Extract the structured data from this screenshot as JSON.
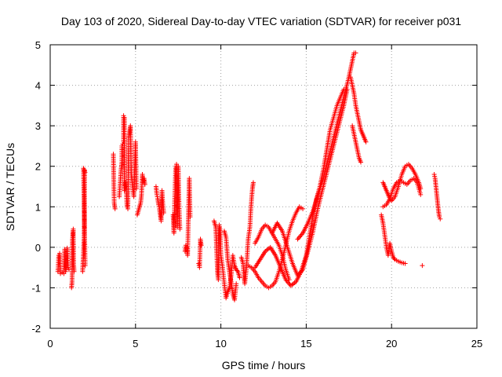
{
  "chart_data": {
    "type": "scatter",
    "title": "Day 103 of 2020, Sidereal Day-to-day VTEC variation (SDTVAR) for receiver p031",
    "xlabel": "GPS time / hours",
    "ylabel": "SDTVAR / TECUs",
    "xlim": [
      0,
      25
    ],
    "ylim": [
      -2,
      5
    ],
    "xticks": [
      "0",
      "5",
      "10",
      "15",
      "20",
      "25"
    ],
    "yticks": [
      "-2",
      "-1",
      "0",
      "1",
      "2",
      "3",
      "4",
      "5"
    ],
    "grid": true,
    "marker": "+",
    "color": "#ff0000",
    "series": [
      {
        "name": "SDTVAR",
        "segments": [
          [
            [
              0.45,
              -0.6
            ],
            [
              0.5,
              -0.2
            ],
            [
              0.55,
              -0.15
            ],
            [
              0.6,
              -0.65
            ],
            [
              0.7,
              -0.62
            ],
            [
              0.8,
              -0.65
            ],
            [
              0.85,
              -0.05
            ],
            [
              0.9,
              -0.6
            ],
            [
              0.95,
              -0.5
            ],
            [
              1.0,
              -0.02
            ],
            [
              1.05,
              -0.5
            ],
            [
              1.1,
              -0.55
            ]
          ],
          [
            [
              1.25,
              -1.0
            ],
            [
              1.28,
              -0.85
            ],
            [
              1.3,
              0.2
            ],
            [
              1.32,
              0.3
            ],
            [
              1.35,
              0.45
            ],
            [
              1.38,
              -0.45
            ],
            [
              1.4,
              -0.6
            ]
          ],
          [
            [
              1.9,
              -0.6
            ],
            [
              1.92,
              -0.4
            ],
            [
              1.94,
              -0.25
            ],
            [
              1.96,
              0.0
            ],
            [
              1.98,
              0.2
            ],
            [
              2.0,
              0.6
            ],
            [
              2.02,
              1.9
            ],
            [
              2.04,
              1.85
            ],
            [
              1.95,
              1.95
            ],
            [
              2.05,
              -0.45
            ]
          ],
          [
            [
              3.7,
              2.3
            ],
            [
              3.75,
              1.1
            ],
            [
              3.8,
              0.95
            ]
          ],
          [
            [
              4.05,
              1.25
            ],
            [
              4.1,
              1.6
            ],
            [
              4.15,
              1.9
            ],
            [
              4.2,
              2.1
            ],
            [
              4.2,
              2.5
            ],
            [
              4.25,
              2.55
            ],
            [
              4.3,
              2.6
            ],
            [
              4.3,
              3.25
            ],
            [
              4.35,
              3.2
            ],
            [
              4.35,
              1.4
            ],
            [
              4.4,
              1.6
            ],
            [
              4.45,
              1.5
            ],
            [
              4.5,
              1.0
            ],
            [
              4.55,
              0.95
            ],
            [
              4.6,
              2.7
            ],
            [
              4.65,
              2.85
            ],
            [
              4.7,
              3.0
            ],
            [
              4.75,
              1.8
            ],
            [
              4.8,
              1.6
            ],
            [
              4.9,
              1.25
            ],
            [
              5.0,
              2.6
            ],
            [
              5.05,
              1.45
            ]
          ],
          [
            [
              5.1,
              0.8
            ],
            [
              5.2,
              0.95
            ],
            [
              5.3,
              1.1
            ],
            [
              5.35,
              1.3
            ],
            [
              5.4,
              1.8
            ],
            [
              5.45,
              1.6
            ],
            [
              5.5,
              1.7
            ],
            [
              5.55,
              1.55
            ]
          ],
          [
            [
              6.2,
              1.5
            ],
            [
              6.25,
              1.3
            ],
            [
              6.3,
              1.2
            ],
            [
              6.35,
              1.05
            ],
            [
              6.4,
              0.95
            ],
            [
              6.45,
              0.8
            ],
            [
              6.5,
              0.65
            ],
            [
              6.55,
              1.4
            ],
            [
              6.6,
              1.05
            ],
            [
              6.65,
              0.85
            ]
          ],
          [
            [
              7.2,
              0.8
            ],
            [
              7.25,
              0.35
            ],
            [
              7.3,
              1.25
            ],
            [
              7.35,
              1.95
            ],
            [
              7.4,
              2.05
            ],
            [
              7.45,
              0.5
            ],
            [
              7.5,
              2.0
            ],
            [
              7.55,
              1.0
            ],
            [
              7.6,
              0.45
            ]
          ],
          [
            [
              7.9,
              -0.1
            ],
            [
              7.95,
              0.05
            ],
            [
              8.0,
              0.0
            ],
            [
              8.05,
              -0.2
            ],
            [
              8.1,
              0.8
            ],
            [
              8.15,
              1.7
            ],
            [
              8.2,
              0.75
            ]
          ],
          [
            [
              8.7,
              -0.4
            ],
            [
              8.75,
              -0.5
            ],
            [
              8.8,
              0.2
            ],
            [
              8.85,
              0.05
            ]
          ],
          [
            [
              9.6,
              0.65
            ],
            [
              9.7,
              0.5
            ],
            [
              9.8,
              -0.6
            ],
            [
              9.85,
              -0.8
            ],
            [
              9.9,
              0.55
            ],
            [
              9.95,
              0.45
            ],
            [
              10.0,
              -0.2
            ],
            [
              10.1,
              -0.5
            ],
            [
              10.2,
              -0.9
            ],
            [
              10.3,
              -1.25
            ],
            [
              10.4,
              -1.1
            ],
            [
              10.5,
              -1.0
            ],
            [
              10.6,
              -0.7
            ],
            [
              10.7,
              -0.2
            ],
            [
              10.8,
              -0.45
            ],
            [
              10.9,
              -0.55
            ],
            [
              11.0,
              -0.6
            ],
            [
              11.1,
              -0.75
            ]
          ],
          [
            [
              10.2,
              0.4
            ],
            [
              10.3,
              0.25
            ],
            [
              10.4,
              -0.3
            ],
            [
              10.5,
              -0.6
            ],
            [
              10.6,
              -0.85
            ],
            [
              10.7,
              -1.15
            ],
            [
              10.8,
              -1.3
            ],
            [
              10.9,
              -0.9
            ]
          ],
          [
            [
              11.2,
              -0.25
            ],
            [
              11.3,
              -0.4
            ],
            [
              11.35,
              -0.7
            ],
            [
              11.4,
              -0.9
            ],
            [
              11.5,
              -0.5
            ],
            [
              11.6,
              0.2
            ],
            [
              11.7,
              0.5
            ],
            [
              11.75,
              0.9
            ],
            [
              11.8,
              1.2
            ],
            [
              11.85,
              1.45
            ],
            [
              11.9,
              1.6
            ]
          ],
          [
            [
              12.0,
              0.1
            ],
            [
              12.2,
              0.25
            ],
            [
              12.4,
              0.45
            ],
            [
              12.6,
              0.55
            ],
            [
              12.8,
              0.5
            ],
            [
              13.0,
              0.35
            ],
            [
              13.2,
              0.2
            ],
            [
              13.4,
              0.05
            ],
            [
              13.6,
              -0.2
            ],
            [
              13.8,
              -0.55
            ],
            [
              14.0,
              -0.8
            ]
          ],
          [
            [
              11.6,
              -0.45
            ],
            [
              11.8,
              -0.5
            ],
            [
              12.0,
              -0.6
            ],
            [
              12.2,
              -0.75
            ],
            [
              12.4,
              -0.85
            ],
            [
              12.6,
              -0.95
            ],
            [
              12.8,
              -1.0
            ],
            [
              13.0,
              -0.95
            ],
            [
              13.2,
              -0.85
            ],
            [
              13.4,
              -0.6
            ],
            [
              13.6,
              -0.3
            ],
            [
              13.8,
              0.05
            ],
            [
              14.0,
              0.4
            ],
            [
              14.2,
              0.65
            ],
            [
              14.4,
              0.85
            ],
            [
              14.6,
              1.0
            ],
            [
              14.8,
              0.95
            ]
          ],
          [
            [
              12.0,
              -0.5
            ],
            [
              12.3,
              -0.3
            ],
            [
              12.6,
              -0.1
            ],
            [
              12.9,
              0.0
            ],
            [
              13.2,
              -0.2
            ],
            [
              13.5,
              -0.5
            ],
            [
              13.8,
              -0.8
            ],
            [
              14.1,
              -0.95
            ],
            [
              14.4,
              -0.85
            ],
            [
              14.7,
              -0.6
            ],
            [
              15.0,
              -0.2
            ],
            [
              15.2,
              0.3
            ],
            [
              15.4,
              0.8
            ],
            [
              15.6,
              1.2
            ],
            [
              15.8,
              1.5
            ],
            [
              16.0,
              1.9
            ],
            [
              16.2,
              2.4
            ],
            [
              16.4,
              2.9
            ],
            [
              16.6,
              3.2
            ],
            [
              16.8,
              3.5
            ],
            [
              17.0,
              3.7
            ],
            [
              17.2,
              3.9
            ]
          ],
          [
            [
              13.0,
              0.35
            ],
            [
              13.3,
              0.6
            ],
            [
              13.6,
              0.4
            ],
            [
              13.9,
              0.0
            ],
            [
              14.2,
              -0.4
            ],
            [
              14.5,
              -0.7
            ],
            [
              14.8,
              -0.55
            ],
            [
              15.1,
              -0.1
            ],
            [
              15.4,
              0.4
            ],
            [
              15.7,
              1.0
            ],
            [
              16.0,
              1.5
            ],
            [
              16.3,
              2.0
            ],
            [
              16.6,
              2.5
            ],
            [
              16.9,
              3.0
            ],
            [
              17.2,
              3.5
            ],
            [
              17.4,
              3.9
            ]
          ],
          [
            [
              14.5,
              0.2
            ],
            [
              14.8,
              0.35
            ],
            [
              15.1,
              0.6
            ],
            [
              15.4,
              0.9
            ],
            [
              15.7,
              1.3
            ],
            [
              16.0,
              1.7
            ],
            [
              16.3,
              2.2
            ],
            [
              16.6,
              2.7
            ],
            [
              16.9,
              3.2
            ],
            [
              17.2,
              3.7
            ],
            [
              17.5,
              4.2
            ],
            [
              17.7,
              4.6
            ],
            [
              17.8,
              4.8
            ],
            [
              17.9,
              4.8
            ]
          ],
          [
            [
              17.6,
              4.2
            ],
            [
              17.8,
              3.8
            ],
            [
              17.9,
              3.5
            ],
            [
              18.0,
              3.3
            ],
            [
              18.1,
              3.1
            ],
            [
              18.2,
              2.9
            ],
            [
              18.3,
              2.8
            ],
            [
              18.4,
              2.7
            ],
            [
              18.5,
              2.6
            ]
          ],
          [
            [
              17.7,
              3.0
            ],
            [
              17.8,
              2.8
            ],
            [
              17.9,
              2.6
            ],
            [
              18.0,
              2.4
            ],
            [
              18.1,
              2.2
            ],
            [
              18.2,
              2.1
            ]
          ],
          [
            [
              19.5,
              1.6
            ],
            [
              19.6,
              1.5
            ],
            [
              19.7,
              1.4
            ],
            [
              19.8,
              1.3
            ],
            [
              19.9,
              1.2
            ],
            [
              20.0,
              1.15
            ],
            [
              20.2,
              1.25
            ],
            [
              20.4,
              1.5
            ],
            [
              20.6,
              1.8
            ],
            [
              20.8,
              2.0
            ],
            [
              21.0,
              2.05
            ],
            [
              21.2,
              1.95
            ],
            [
              21.4,
              1.8
            ],
            [
              21.6,
              1.6
            ],
            [
              21.7,
              1.45
            ]
          ],
          [
            [
              19.5,
              1.0
            ],
            [
              19.7,
              1.05
            ],
            [
              19.9,
              1.2
            ],
            [
              20.1,
              1.45
            ],
            [
              20.3,
              1.6
            ],
            [
              20.5,
              1.65
            ],
            [
              20.7,
              1.6
            ],
            [
              20.9,
              1.55
            ],
            [
              21.1,
              1.65
            ],
            [
              21.3,
              1.7
            ],
            [
              21.5,
              1.6
            ],
            [
              21.7,
              1.3
            ]
          ],
          [
            [
              19.4,
              0.8
            ],
            [
              19.5,
              0.6
            ],
            [
              19.6,
              0.3
            ],
            [
              19.7,
              0.0
            ],
            [
              19.8,
              -0.2
            ],
            [
              19.9,
              0.1
            ],
            [
              20.0,
              -0.1
            ],
            [
              20.1,
              -0.25
            ],
            [
              20.2,
              -0.3
            ],
            [
              20.4,
              -0.35
            ],
            [
              20.6,
              -0.38
            ],
            [
              20.8,
              -0.4
            ]
          ],
          [
            [
              21.8,
              -0.45
            ]
          ],
          [
            [
              22.5,
              1.8
            ],
            [
              22.55,
              1.7
            ],
            [
              22.6,
              1.5
            ],
            [
              22.65,
              1.3
            ],
            [
              22.7,
              1.1
            ],
            [
              22.75,
              0.9
            ],
            [
              22.8,
              0.75
            ],
            [
              22.85,
              0.7
            ]
          ]
        ]
      }
    ]
  }
}
